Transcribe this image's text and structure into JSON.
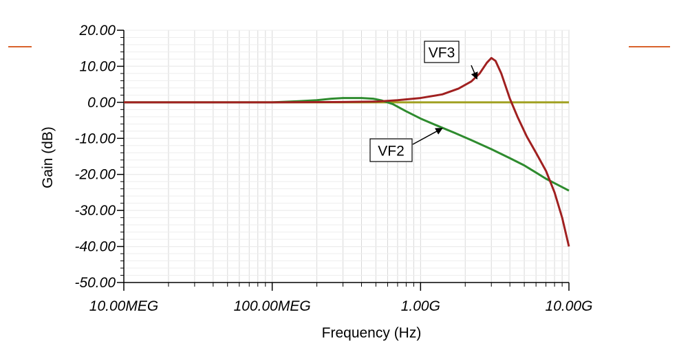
{
  "colors": {
    "accent_line": "#d9622b",
    "vf2": "#2e8b2e",
    "vf3": "#a02020",
    "vf1": "#a0a020",
    "grid": "#d8d8d8",
    "plot_border": "#bbbbbb"
  },
  "chart_data": {
    "type": "line",
    "xlabel": "Frequency (Hz)",
    "ylabel": "Gain (dB)",
    "x_scale": "log",
    "xlim": [
      10000000,
      10000000000
    ],
    "ylim": [
      -50,
      20
    ],
    "grid": true,
    "x_ticks": [
      {
        "value": 10000000,
        "label": "10.00MEG"
      },
      {
        "value": 100000000,
        "label": "100.00MEG"
      },
      {
        "value": 1000000000,
        "label": "1.00G"
      },
      {
        "value": 10000000000,
        "label": "10.00G"
      }
    ],
    "y_ticks": [
      {
        "value": 20,
        "label": "20.00"
      },
      {
        "value": 10,
        "label": "10.00"
      },
      {
        "value": 0,
        "label": "0.00"
      },
      {
        "value": -10,
        "label": "-10.00"
      },
      {
        "value": -20,
        "label": "-20.00"
      },
      {
        "value": -30,
        "label": "-30.00"
      },
      {
        "value": -40,
        "label": "-40.00"
      },
      {
        "value": -50,
        "label": "-50.00"
      }
    ],
    "series": [
      {
        "name": "",
        "color_key": "vf1",
        "points": [
          [
            10000000,
            0
          ],
          [
            10000000000,
            0
          ]
        ]
      },
      {
        "name": "VF2",
        "color_key": "vf2",
        "points": [
          [
            10000000,
            0
          ],
          [
            100000000,
            0
          ],
          [
            150000000,
            0.3
          ],
          [
            200000000,
            0.6
          ],
          [
            250000000,
            1.0
          ],
          [
            300000000,
            1.2
          ],
          [
            400000000,
            1.2
          ],
          [
            480000000,
            1.0
          ],
          [
            550000000,
            0.5
          ],
          [
            650000000,
            -0.5
          ],
          [
            800000000,
            -2.5
          ],
          [
            1000000000,
            -4.5
          ],
          [
            1300000000,
            -6.5
          ],
          [
            1700000000,
            -8.5
          ],
          [
            2200000000,
            -10.5
          ],
          [
            3000000000,
            -13
          ],
          [
            4000000000,
            -15.5
          ],
          [
            5000000000,
            -17.5
          ],
          [
            6000000000,
            -19.5
          ],
          [
            7000000000,
            -21.2
          ],
          [
            8500000000,
            -23
          ],
          [
            10000000000,
            -24.5
          ]
        ]
      },
      {
        "name": "VF3",
        "color_key": "vf3",
        "points": [
          [
            10000000,
            0
          ],
          [
            100000000,
            0
          ],
          [
            300000000,
            0.1
          ],
          [
            500000000,
            0.2
          ],
          [
            700000000,
            0.6
          ],
          [
            1000000000,
            1.2
          ],
          [
            1400000000,
            2.2
          ],
          [
            1800000000,
            3.8
          ],
          [
            2200000000,
            5.8
          ],
          [
            2500000000,
            8.0
          ],
          [
            2800000000,
            11.0
          ],
          [
            3000000000,
            12.3
          ],
          [
            3200000000,
            11.5
          ],
          [
            3500000000,
            8.0
          ],
          [
            4000000000,
            1.0
          ],
          [
            4500000000,
            -4.0
          ],
          [
            5200000000,
            -9.5
          ],
          [
            6000000000,
            -14.0
          ],
          [
            7000000000,
            -19.0
          ],
          [
            8000000000,
            -25.0
          ],
          [
            9000000000,
            -32.0
          ],
          [
            10000000000,
            -40.0
          ]
        ]
      }
    ],
    "callouts": [
      {
        "series": "VF3",
        "label": "VF3",
        "target": [
          2400000000,
          6.5
        ]
      },
      {
        "series": "VF2",
        "label": "VF2",
        "target": [
          1400000000,
          -7.2
        ]
      }
    ]
  }
}
